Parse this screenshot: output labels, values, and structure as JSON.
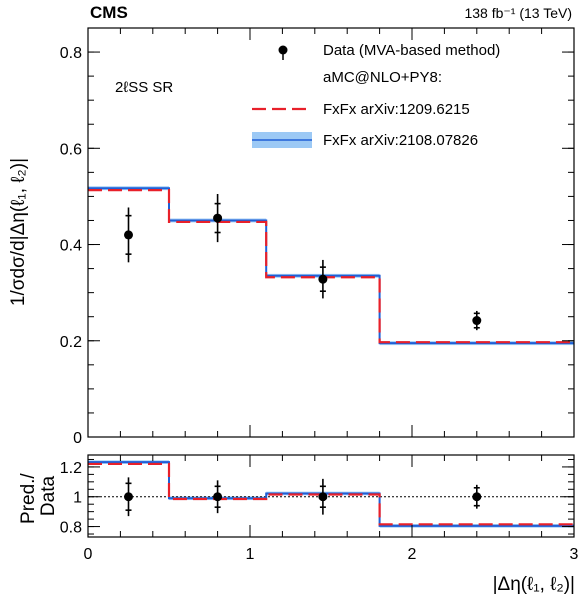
{
  "header": {
    "experiment": "CMS",
    "luminosity": "138 fb⁻¹ (13 TeV)"
  },
  "annotation": "2ℓSS SR",
  "legend": {
    "data": "Data (MVA-based method)",
    "generator": "aMC@NLO+PY8:",
    "fxfx_old": "FxFx arXiv:1209.6215",
    "fxfx_new": "FxFx arXiv:2108.07826"
  },
  "colors": {
    "fxfx_old": "#e8202a",
    "fxfx_new_line": "#1f5fd6",
    "fxfx_new_band": "#9cc9f5",
    "data": "#000000"
  },
  "chart_data": [
    {
      "type": "line",
      "style": "step-histogram",
      "xlabel": "|Δη(ℓ₁, ℓ₂)|",
      "ylabel": "1/σdσ/d|Δη(ℓ₁, ℓ₂)|",
      "xlim": [
        0,
        3
      ],
      "ylim": [
        0,
        0.85
      ],
      "x_ticks": [
        "0",
        "1",
        "2",
        "3"
      ],
      "y_ticks": [
        "0",
        "0.2",
        "0.4",
        "0.6",
        "0.8"
      ],
      "bin_edges": [
        0,
        0.5,
        1.1,
        1.8,
        3.0
      ],
      "data": {
        "name": "Data (MVA-based method)",
        "x": [
          0.25,
          0.8,
          1.45,
          2.4
        ],
        "y": [
          0.42,
          0.455,
          0.328,
          0.242
        ],
        "err_stat": [
          0.04,
          0.03,
          0.025,
          0.015
        ],
        "err_total": [
          0.057,
          0.05,
          0.04,
          0.02
        ]
      },
      "series": [
        {
          "name": "FxFx arXiv:1209.6215",
          "values": [
            0.513,
            0.447,
            0.332,
            0.197
          ]
        },
        {
          "name": "FxFx arXiv:2108.07826",
          "values": [
            0.517,
            0.45,
            0.335,
            0.195
          ],
          "band": 0.004
        }
      ]
    },
    {
      "type": "line",
      "style": "ratio-step",
      "xlabel": "|Δη(ℓ₁, ℓ₂)|",
      "ylabel": "Pred./ Data",
      "xlim": [
        0,
        3
      ],
      "ylim": [
        0.73,
        1.28
      ],
      "x_ticks": [
        "0",
        "1",
        "2",
        "3"
      ],
      "y_ticks": [
        "0.8",
        "1",
        "1.2"
      ],
      "bin_edges": [
        0,
        0.5,
        1.1,
        1.8,
        3.0
      ],
      "data": {
        "x": [
          0.25,
          0.8,
          1.45,
          2.4
        ],
        "y": [
          1.0,
          1.0,
          1.0,
          1.0
        ],
        "err_stat": [
          0.09,
          0.07,
          0.07,
          0.06
        ],
        "err_total": [
          0.13,
          0.11,
          0.12,
          0.08
        ]
      },
      "series": [
        {
          "name": "FxFx arXiv:1209.6215",
          "values": [
            1.22,
            0.985,
            1.015,
            0.815
          ]
        },
        {
          "name": "FxFx arXiv:2108.07826",
          "values": [
            1.232,
            0.99,
            1.022,
            0.805
          ],
          "band": 0.012
        }
      ]
    }
  ]
}
